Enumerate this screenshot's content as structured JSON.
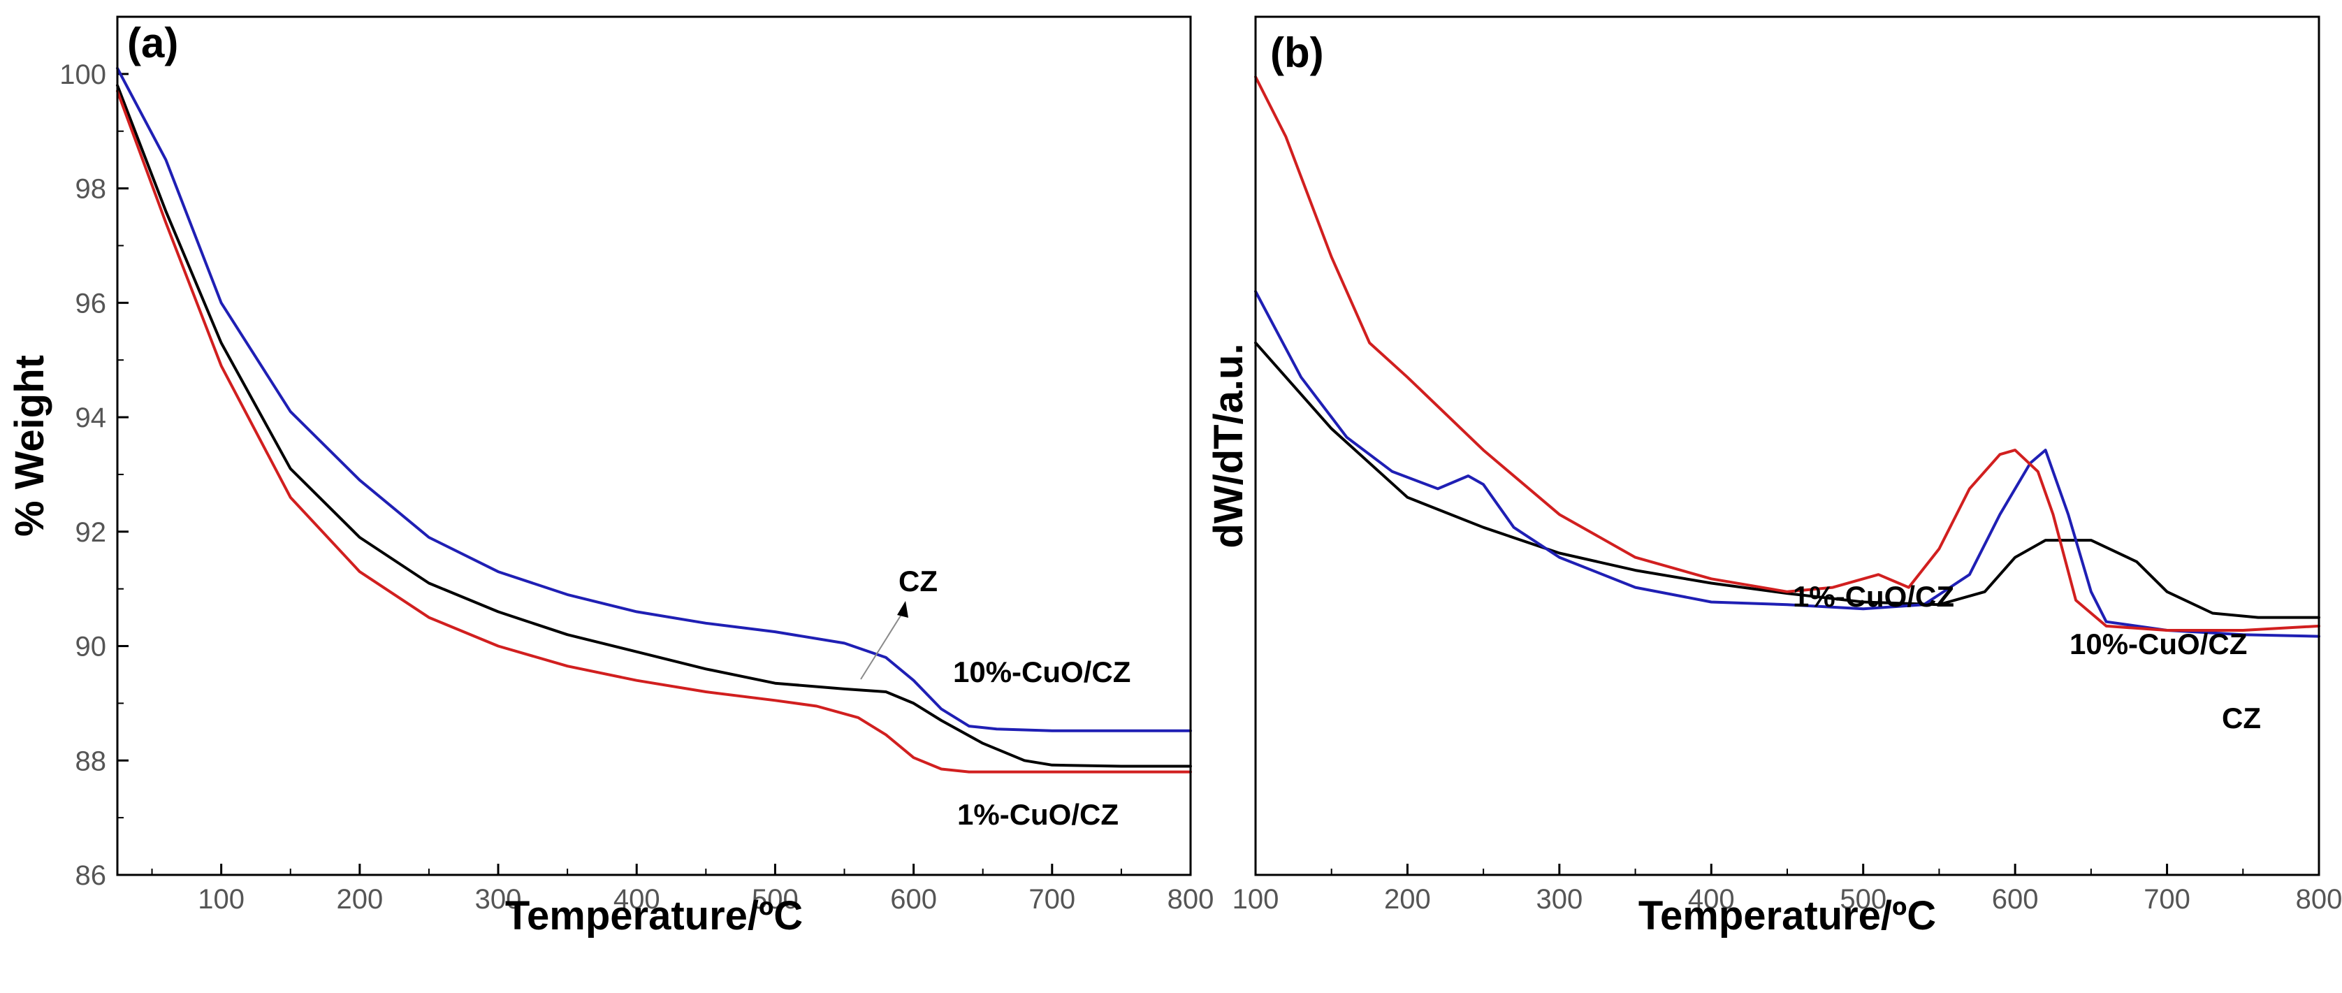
{
  "chart_data": [
    {
      "panel": "(a)",
      "type": "line",
      "xlabel": "Temperature/ºC",
      "ylabel": "% Weight",
      "xlim": [
        25,
        800
      ],
      "ylim": [
        86,
        101
      ],
      "xticks": [
        100,
        200,
        300,
        400,
        500,
        600,
        700,
        800
      ],
      "yticks": [
        86,
        88,
        90,
        92,
        94,
        96,
        98,
        100
      ],
      "series": [
        {
          "name": "CZ",
          "color": "#000000",
          "x": [
            25,
            60,
            100,
            150,
            200,
            250,
            300,
            350,
            400,
            450,
            500,
            550,
            580,
            600,
            620,
            650,
            680,
            700,
            750,
            800
          ],
          "y": [
            99.8,
            97.6,
            95.3,
            93.1,
            91.9,
            91.1,
            90.6,
            90.2,
            89.9,
            89.6,
            89.35,
            89.25,
            89.2,
            89.0,
            88.7,
            88.3,
            88.0,
            87.92,
            87.9,
            87.9
          ]
        },
        {
          "name": "10%-CuO/CZ",
          "color": "#1f1fb4",
          "x": [
            25,
            60,
            100,
            150,
            200,
            250,
            300,
            350,
            400,
            450,
            500,
            550,
            580,
            600,
            620,
            640,
            660,
            700,
            750,
            800
          ],
          "y": [
            100.1,
            98.5,
            96.0,
            94.1,
            92.9,
            91.9,
            91.3,
            90.9,
            90.6,
            90.4,
            90.25,
            90.05,
            89.8,
            89.4,
            88.9,
            88.6,
            88.55,
            88.52,
            88.52,
            88.52
          ]
        },
        {
          "name": "1%-CuO/CZ",
          "color": "#d11f1f",
          "x": [
            25,
            60,
            100,
            150,
            200,
            250,
            300,
            350,
            400,
            450,
            500,
            530,
            560,
            580,
            600,
            620,
            640,
            700,
            750,
            800
          ],
          "y": [
            99.7,
            97.4,
            94.9,
            92.6,
            91.3,
            90.5,
            90.0,
            89.65,
            89.4,
            89.2,
            89.05,
            88.95,
            88.75,
            88.45,
            88.05,
            87.85,
            87.8,
            87.8,
            87.8,
            87.8
          ]
        }
      ],
      "annotations": [
        {
          "text": "CZ"
        },
        {
          "text": "10%-CuO/CZ"
        },
        {
          "text": "1%-CuO/CZ"
        }
      ]
    },
    {
      "panel": "(b)",
      "type": "line",
      "xlabel": "Temperature/ºC",
      "ylabel": "dW/dT/a.u.",
      "xlim": [
        100,
        800
      ],
      "ylim": [
        0,
        100
      ],
      "xticks": [
        100,
        200,
        300,
        400,
        500,
        600,
        700,
        800
      ],
      "yticks": [],
      "series": [
        {
          "name": "CZ",
          "color": "#000000",
          "x": [
            100,
            150,
            200,
            250,
            300,
            350,
            400,
            450,
            500,
            550,
            580,
            600,
            620,
            650,
            680,
            700,
            730,
            760,
            800
          ],
          "y": [
            62.0,
            52.0,
            44.0,
            40.5,
            37.5,
            35.5,
            34.0,
            32.8,
            31.8,
            31.5,
            33.0,
            37.0,
            39.0,
            39.0,
            36.5,
            33.0,
            30.5,
            30.0,
            30.0
          ]
        },
        {
          "name": "10%-CuO/CZ",
          "color": "#1f1fb4",
          "x": [
            100,
            130,
            160,
            190,
            220,
            240,
            250,
            270,
            300,
            350,
            400,
            450,
            500,
            540,
            570,
            590,
            610,
            620,
            635,
            650,
            660,
            700,
            750,
            800
          ],
          "y": [
            68.0,
            58.0,
            51.0,
            47.0,
            45.0,
            46.5,
            45.5,
            40.5,
            37.0,
            33.5,
            31.8,
            31.5,
            31.0,
            31.5,
            35.0,
            42.0,
            48.0,
            49.5,
            42.0,
            33.0,
            29.5,
            28.5,
            28.0,
            27.8
          ]
        },
        {
          "name": "1%-CuO/CZ",
          "color": "#d11f1f",
          "x": [
            100,
            120,
            150,
            175,
            200,
            250,
            300,
            350,
            400,
            450,
            480,
            500,
            510,
            530,
            550,
            570,
            590,
            600,
            615,
            625,
            640,
            660,
            700,
            750,
            800
          ],
          "y": [
            93.0,
            86.0,
            72.0,
            62.0,
            58.0,
            49.5,
            42.0,
            37.0,
            34.5,
            33.0,
            33.5,
            34.5,
            35.0,
            33.5,
            38.0,
            45.0,
            49.0,
            49.5,
            47.0,
            42.0,
            32.0,
            29.0,
            28.5,
            28.5,
            29.0
          ]
        }
      ],
      "annotations": [
        {
          "text": "1%-CuO/CZ"
        },
        {
          "text": "10%-CuO/CZ"
        },
        {
          "text": "CZ"
        }
      ]
    }
  ]
}
